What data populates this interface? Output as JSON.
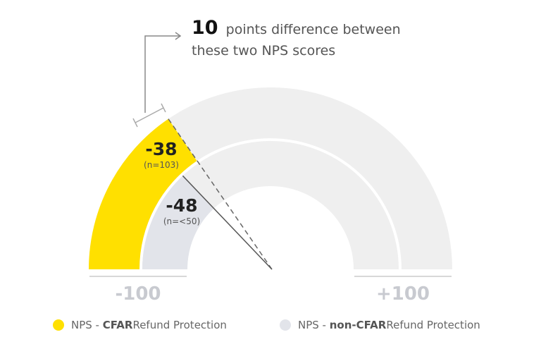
{
  "chart_data": {
    "type": "gauge",
    "scale_min": -100,
    "scale_max": 100,
    "axis_labels": {
      "min": "-100",
      "max": "+100"
    },
    "annotation": {
      "number": "10",
      "line1_rest": "points difference between",
      "line2": "these two NPS scores"
    },
    "series": [
      {
        "name": "NPS - CFAR Refund Protection",
        "legend_prefix": "NPS - ",
        "legend_bold": "CFAR",
        "legend_suffix": " Refund Protection",
        "value": -38,
        "value_label": "-38",
        "n_label": "(n=103)",
        "color": "#FFE000"
      },
      {
        "name": "NPS - non-CFAR Refund Protection",
        "legend_prefix": "NPS - ",
        "legend_bold": "non-CFAR",
        "legend_suffix": " Refund Protection",
        "value": -48,
        "value_label": "-48",
        "n_label": "(n=<50)",
        "color": "#E2E4EA"
      }
    ],
    "track_color": "#EFEFEF",
    "label_color": "#C8CAD0"
  }
}
